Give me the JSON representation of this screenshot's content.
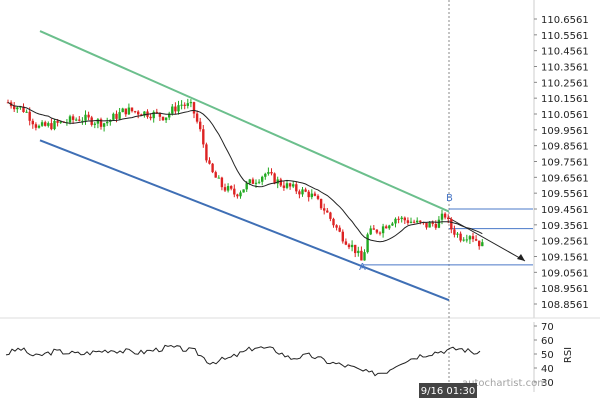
{
  "chart_data": {
    "type": "candlestick",
    "price_axis": {
      "ticks": [
        "110.6561",
        "110.5561",
        "110.4561",
        "110.3561",
        "110.2561",
        "110.1561",
        "110.0561",
        "109.9561",
        "109.8561",
        "109.7561",
        "109.6561",
        "109.5561",
        "109.4561",
        "109.3561",
        "109.2561",
        "109.1561",
        "109.0561",
        "108.9561",
        "108.8561"
      ],
      "tick_values": [
        110.6561,
        110.5561,
        110.4561,
        110.3561,
        110.2561,
        110.1561,
        110.0561,
        109.9561,
        109.8561,
        109.7561,
        109.6561,
        109.5561,
        109.4561,
        109.3561,
        109.2561,
        109.1561,
        109.0561,
        108.9561,
        108.8561
      ],
      "range": [
        108.8,
        110.7
      ]
    },
    "rsi_axis": {
      "label": "RSI",
      "ticks": [
        "70",
        "60",
        "50",
        "40",
        "30"
      ],
      "tick_values": [
        70,
        60,
        50,
        40,
        30
      ]
    },
    "time_label": "9/16 01:30",
    "points": [
      {
        "label": "A",
        "value": 109.13
      },
      {
        "label": "B",
        "value": 109.47
      }
    ],
    "levels": [
      109.456,
      109.332,
      109.103
    ],
    "trend_upper": {
      "start": 110.58,
      "end": 109.44
    },
    "trend_lower": {
      "start": 109.89,
      "end": 108.88
    },
    "colors": {
      "up": "#22aa22",
      "down": "#dd2222",
      "upper_line": "#6bbf8c",
      "lower_line": "#3f6fb5",
      "level": "#4a78c8",
      "ma": "#222222"
    },
    "watermark": "autochartist.com"
  }
}
